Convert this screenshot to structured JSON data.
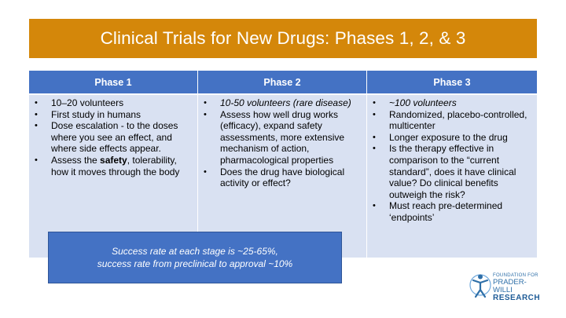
{
  "title": "Clinical Trials for New Drugs: Phases 1, 2, & 3",
  "columns": [
    {
      "header": "Phase 1",
      "items": [
        {
          "text": "10–20 volunteers"
        },
        {
          "text": "First study in humans"
        },
        {
          "text": "Dose escalation - to the doses where you see an effect, and where side effects appear."
        },
        {
          "pre": "Assess the ",
          "bold": "safety",
          "post": ", tolerability, how it moves through the body"
        }
      ]
    },
    {
      "header": "Phase 2",
      "items": [
        {
          "text": "10-50 volunteers (rare disease)",
          "italic": true
        },
        {
          "text": "Assess how well drug works (efficacy), expand safety assessments, more extensive mechanism of action, pharmacological properties"
        },
        {
          "text": "Does the drug have biological activity or effect?"
        }
      ]
    },
    {
      "header": "Phase 3",
      "items": [
        {
          "text": "~100 volunteers",
          "italic": true
        },
        {
          "text": "Randomized, placebo-controlled, multicenter"
        },
        {
          "text": "Longer exposure to the drug"
        },
        {
          "text": "Is the therapy effective in comparison to the “current standard”, does it have clinical value? Do clinical benefits outweigh the risk?"
        },
        {
          "text": "Must reach pre-determined ‘endpoints’"
        }
      ]
    }
  ],
  "callout": {
    "line1": "Success rate at each stage is ~25-65%,",
    "line2": "success rate from preclinical to approval ~10%"
  },
  "logo": {
    "line1": "FOUNDATION FOR",
    "line2": "PRADER-WILLI",
    "line3": "RESEARCH"
  },
  "colors": {
    "title_bar": "#D4870A",
    "header": "#4472C4",
    "body": "#D9E1F2",
    "callout": "#4472C4",
    "logo": "#2E6FA8"
  }
}
